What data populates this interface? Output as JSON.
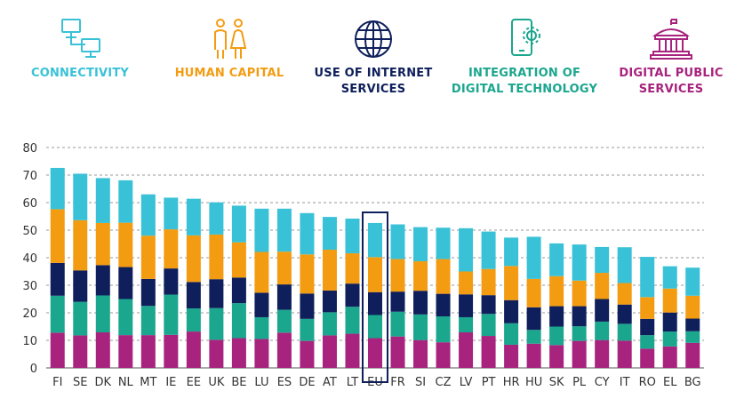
{
  "legend": {
    "connectivity": {
      "line1": "CONNECTIVITY",
      "line2": "",
      "color": "#39C2D7",
      "icon": "network-computers-icon"
    },
    "human_capital": {
      "line1": "HUMAN CAPITAL",
      "line2": "",
      "color": "#F39C12",
      "icon": "people-icon"
    },
    "internet_services": {
      "line1": "USE OF INTERNET",
      "line2": "SERVICES",
      "color": "#0E1F5B",
      "icon": "globe-icon"
    },
    "digital_tech": {
      "line1": "INTEGRATION OF",
      "line2": "DIGITAL TECHNOLOGY",
      "color": "#1BA68E",
      "icon": "phone-gear-icon"
    },
    "public_services": {
      "line1": "DIGITAL PUBLIC",
      "line2": "SERVICES",
      "color": "#A7237E",
      "icon": "government-building-icon"
    }
  },
  "chart_data": {
    "type": "bar",
    "stacked": true,
    "categories": [
      "FI",
      "SE",
      "DK",
      "NL",
      "MT",
      "IE",
      "EE",
      "UK",
      "BE",
      "LU",
      "ES",
      "DE",
      "AT",
      "LT",
      "EU",
      "FR",
      "SI",
      "CZ",
      "LV",
      "PT",
      "HR",
      "HU",
      "SK",
      "PL",
      "CY",
      "IT",
      "RO",
      "EL",
      "BG"
    ],
    "highlight": "EU",
    "ylim": [
      0,
      80
    ],
    "yticks": [
      "0",
      "10",
      "20",
      "30",
      "40",
      "50",
      "60",
      "70",
      "80"
    ],
    "grid": "dashed-horizontal",
    "series": [
      {
        "key": "public_services",
        "color": "#A7237E",
        "values": [
          12.8,
          11.8,
          12.9,
          11.9,
          11.9,
          12.0,
          13.2,
          10.2,
          10.8,
          10.5,
          12.8,
          9.8,
          11.8,
          12.4,
          10.8,
          11.4,
          10.1,
          9.3,
          12.9,
          11.6,
          8.4,
          8.8,
          8.3,
          9.8,
          10.1,
          9.9,
          7.0,
          7.8,
          9.1
        ]
      },
      {
        "key": "digital_tech",
        "color": "#1BA68E",
        "values": [
          13.4,
          12.2,
          13.4,
          13.1,
          10.6,
          14.6,
          8.4,
          11.5,
          12.7,
          7.9,
          8.3,
          8.0,
          8.4,
          9.8,
          8.4,
          9.0,
          9.3,
          9.4,
          5.5,
          8.0,
          7.8,
          5.0,
          6.7,
          5.3,
          6.7,
          6.1,
          4.9,
          5.4,
          4.2
        ]
      },
      {
        "key": "internet_services",
        "color": "#0E1F5B",
        "values": [
          11.9,
          11.4,
          11.0,
          11.6,
          9.8,
          9.5,
          9.6,
          10.5,
          9.3,
          8.9,
          9.2,
          9.2,
          7.9,
          8.4,
          8.3,
          7.3,
          8.6,
          8.2,
          8.3,
          6.8,
          8.4,
          8.2,
          7.4,
          7.3,
          8.2,
          7.0,
          5.9,
          6.9,
          4.6
        ]
      },
      {
        "key": "human_capital",
        "color": "#F39C12",
        "values": [
          19.5,
          18.2,
          15.3,
          16.1,
          15.7,
          14.2,
          16.9,
          16.2,
          12.8,
          14.8,
          11.9,
          14.2,
          14.8,
          11.0,
          12.7,
          11.8,
          10.7,
          12.6,
          8.3,
          9.5,
          12.4,
          10.3,
          10.9,
          9.3,
          9.5,
          7.8,
          7.9,
          8.7,
          8.3
        ]
      },
      {
        "key": "connectivity",
        "color": "#39C2D7",
        "values": [
          15.0,
          16.9,
          16.3,
          15.4,
          15.0,
          11.5,
          13.3,
          11.7,
          13.3,
          15.7,
          15.6,
          15.0,
          11.9,
          12.6,
          12.4,
          12.6,
          12.4,
          11.4,
          15.7,
          13.6,
          10.3,
          15.3,
          11.9,
          13.1,
          9.4,
          13.0,
          14.6,
          8.1,
          10.2
        ]
      }
    ]
  }
}
